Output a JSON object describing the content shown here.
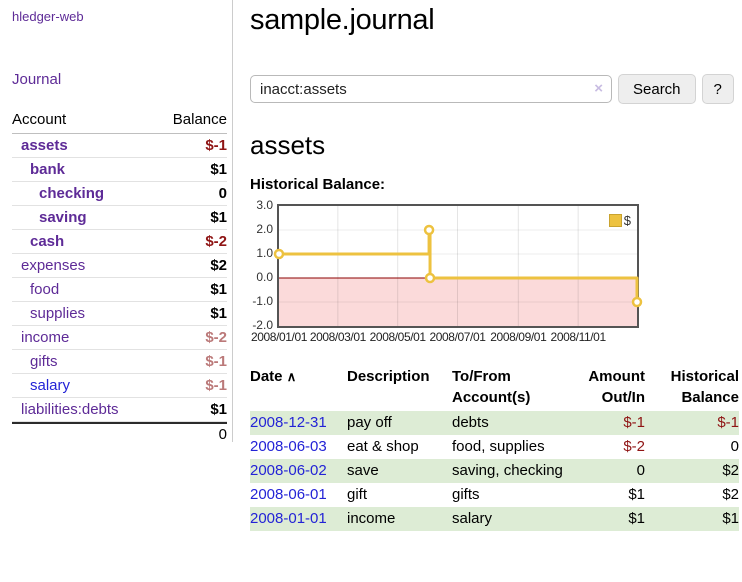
{
  "palette": {
    "link_purple": "#5e2b97",
    "link_blue": "#2323d6",
    "neg_strong": "#8f1414",
    "neg_soft": "#bb7979",
    "row_green": "#ddecd5",
    "chart_line": "#edc240",
    "chart_negative_fill": "#fbdada",
    "chart_zero_line": "#8b0000"
  },
  "header": {
    "brand": "hledger-web",
    "nav_journal": "Journal"
  },
  "sidebar": {
    "table_headers": {
      "account": "Account",
      "balance": "Balance"
    },
    "accounts": [
      {
        "name": "assets",
        "balance": "$-1",
        "indent": 1,
        "bold": true,
        "name_color": "purple",
        "balance_tone": "neg-strong"
      },
      {
        "name": "bank",
        "balance": "$1",
        "indent": 2,
        "bold": true,
        "name_color": "purple",
        "balance_tone": "plain"
      },
      {
        "name": "checking",
        "balance": "0",
        "indent": 3,
        "bold": true,
        "name_color": "purple",
        "balance_tone": "plain"
      },
      {
        "name": "saving",
        "balance": "$1",
        "indent": 3,
        "bold": true,
        "name_color": "purple",
        "balance_tone": "plain"
      },
      {
        "name": "cash",
        "balance": "$-2",
        "indent": 2,
        "bold": true,
        "name_color": "purple",
        "balance_tone": "neg-strong"
      },
      {
        "name": "expenses",
        "balance": "$2",
        "indent": 1,
        "bold": false,
        "name_color": "purple",
        "balance_tone": "plain"
      },
      {
        "name": "food",
        "balance": "$1",
        "indent": 2,
        "bold": false,
        "name_color": "purple",
        "balance_tone": "plain"
      },
      {
        "name": "supplies",
        "balance": "$1",
        "indent": 2,
        "bold": false,
        "name_color": "purple",
        "balance_tone": "plain"
      },
      {
        "name": "income",
        "balance": "$-2",
        "indent": 1,
        "bold": false,
        "name_color": "purple",
        "balance_tone": "neg-soft"
      },
      {
        "name": "gifts",
        "balance": "$-1",
        "indent": 2,
        "bold": false,
        "name_color": "purple",
        "balance_tone": "neg-soft"
      },
      {
        "name": "salary",
        "balance": "$-1",
        "indent": 2,
        "bold": false,
        "name_color": "blue",
        "balance_tone": "neg-soft"
      },
      {
        "name": "liabilities:debts",
        "balance": "$1",
        "indent": 1,
        "bold": false,
        "name_color": "purple",
        "balance_tone": "plain"
      }
    ],
    "total": "0"
  },
  "main": {
    "title": "sample.journal",
    "search": {
      "value": "inacct:assets",
      "clear_icon": "×",
      "button": "Search",
      "help_button": "?"
    },
    "account_heading": "assets",
    "chart_title": "Historical Balance:"
  },
  "chart_data": {
    "type": "line",
    "step": true,
    "title": "Historical Balance",
    "legend": [
      {
        "label": "$",
        "color": "#edc240"
      }
    ],
    "legend_position": "top-right",
    "ylim": [
      -2,
      3
    ],
    "yticks": [
      {
        "label": "3.0",
        "value": 3
      },
      {
        "label": "2.0",
        "value": 2
      },
      {
        "label": "1.0",
        "value": 1
      },
      {
        "label": "0.0",
        "value": 0
      },
      {
        "label": "-1.0",
        "value": -1
      },
      {
        "label": "-2.0",
        "value": -2
      }
    ],
    "xticks": [
      {
        "label": "2008/01/01",
        "day": 0
      },
      {
        "label": "2008/03/01",
        "day": 60
      },
      {
        "label": "2008/05/01",
        "day": 121
      },
      {
        "label": "2008/07/01",
        "day": 182
      },
      {
        "label": "2008/09/01",
        "day": 244
      },
      {
        "label": "2008/11/01",
        "day": 305
      }
    ],
    "x_total_days": 365,
    "grid": true,
    "negative_region_shaded": true,
    "series": [
      {
        "name": "$",
        "points": [
          {
            "date": "2008-01-01",
            "day": 0,
            "value": 1
          },
          {
            "date": "2008-06-02",
            "day": 153,
            "value": 2
          },
          {
            "date": "2008-06-03",
            "day": 154,
            "value": 0
          },
          {
            "date": "2008-12-31",
            "day": 365,
            "value": -1
          }
        ]
      }
    ]
  },
  "register": {
    "headers": {
      "date": "Date",
      "sort_icon": "∧",
      "description": "Description",
      "accounts": "To/From Account(s)",
      "amount": "Amount Out/In",
      "balance": "Historical Balance"
    },
    "rows": [
      {
        "date": "2008-12-31",
        "description": "pay off",
        "accounts": "debts",
        "amount": "$-1",
        "balance": "$-1"
      },
      {
        "date": "2008-06-03",
        "description": "eat & shop",
        "accounts": "food, supplies",
        "amount": "$-2",
        "balance": "0"
      },
      {
        "date": "2008-06-02",
        "description": "save",
        "accounts": "saving, checking",
        "amount": "0",
        "balance": "$2"
      },
      {
        "date": "2008-06-01",
        "description": "gift",
        "accounts": "gifts",
        "amount": "$1",
        "balance": "$2"
      },
      {
        "date": "2008-01-01",
        "description": "income",
        "accounts": "salary",
        "amount": "$1",
        "balance": "$1"
      }
    ]
  }
}
